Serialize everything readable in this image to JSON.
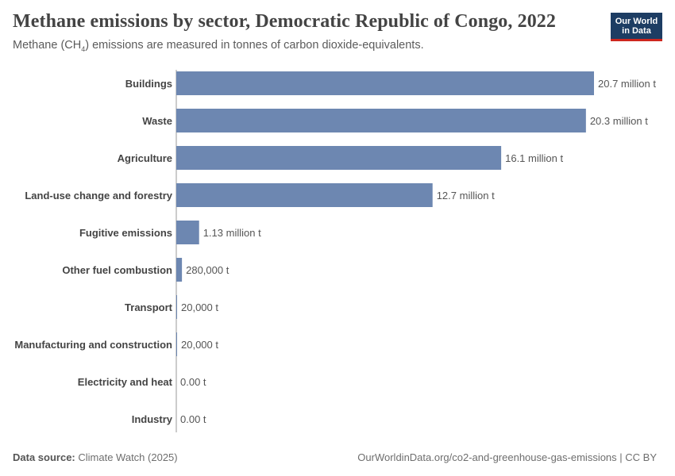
{
  "header": {
    "title": "Methane emissions by sector, Democratic Republic of Congo, 2022",
    "subtitle_pre": "Methane (CH",
    "subtitle_sub": "4",
    "subtitle_post": ") emissions are measured in tonnes of carbon dioxide-equivalents."
  },
  "logo": {
    "line1": "Our World",
    "line2": "in Data"
  },
  "footer": {
    "source_label": "Data source:",
    "source_value": "Climate Watch (2025)",
    "url_license": "OurWorldinData.org/co2-and-greenhouse-gas-emissions | CC BY"
  },
  "colors": {
    "bar": "#6d87b1",
    "logo_bg": "#1d3d63",
    "logo_accent": "#ce261e"
  },
  "chart_data": {
    "type": "bar",
    "orientation": "horizontal",
    "title": "Methane emissions by sector, Democratic Republic of Congo, 2022",
    "unit": "tonnes CO2-equivalents",
    "categories": [
      "Buildings",
      "Waste",
      "Agriculture",
      "Land-use change and forestry",
      "Fugitive emissions",
      "Other fuel combustion",
      "Transport",
      "Manufacturing and construction",
      "Electricity and heat",
      "Industry"
    ],
    "values": [
      20700000,
      20300000,
      16100000,
      12700000,
      1130000,
      280000,
      20000,
      20000,
      0,
      0
    ],
    "value_labels": [
      "20.7 million t",
      "20.3 million t",
      "16.1 million t",
      "12.7 million t",
      "1.13 million t",
      "280,000 t",
      "20,000 t",
      "20,000 t",
      "0.00 t",
      "0.00 t"
    ],
    "xlim": [
      0,
      20700000
    ]
  }
}
